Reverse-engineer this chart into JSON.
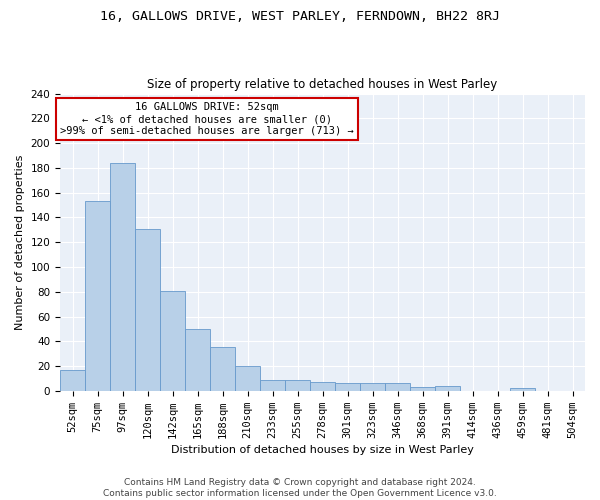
{
  "title1": "16, GALLOWS DRIVE, WEST PARLEY, FERNDOWN, BH22 8RJ",
  "title2": "Size of property relative to detached houses in West Parley",
  "xlabel": "Distribution of detached houses by size in West Parley",
  "ylabel": "Number of detached properties",
  "categories": [
    "52sqm",
    "75sqm",
    "97sqm",
    "120sqm",
    "142sqm",
    "165sqm",
    "188sqm",
    "210sqm",
    "233sqm",
    "255sqm",
    "278sqm",
    "301sqm",
    "323sqm",
    "346sqm",
    "368sqm",
    "391sqm",
    "414sqm",
    "436sqm",
    "459sqm",
    "481sqm",
    "504sqm"
  ],
  "values": [
    17,
    153,
    184,
    131,
    81,
    50,
    35,
    20,
    9,
    9,
    7,
    6,
    6,
    6,
    3,
    4,
    0,
    0,
    2,
    0,
    0
  ],
  "bar_color": "#b8d0e8",
  "bar_edge_color": "#6699cc",
  "annotation_title": "16 GALLOWS DRIVE: 52sqm",
  "annotation_line1": "← <1% of detached houses are smaller (0)",
  "annotation_line2": ">99% of semi-detached houses are larger (713) →",
  "annotation_box_color": "#ffffff",
  "annotation_box_edge": "#cc0000",
  "ylim": [
    0,
    240
  ],
  "yticks": [
    0,
    20,
    40,
    60,
    80,
    100,
    120,
    140,
    160,
    180,
    200,
    220,
    240
  ],
  "bg_color": "#eaf0f8",
  "footer1": "Contains HM Land Registry data © Crown copyright and database right 2024.",
  "footer2": "Contains public sector information licensed under the Open Government Licence v3.0.",
  "title1_fontsize": 9.5,
  "title2_fontsize": 8.5,
  "xlabel_fontsize": 8,
  "ylabel_fontsize": 8,
  "tick_fontsize": 7.5,
  "annotation_fontsize": 7.5,
  "footer_fontsize": 6.5
}
